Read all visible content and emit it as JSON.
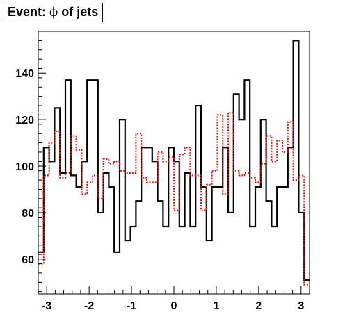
{
  "title": {
    "prefix": "Event: ",
    "symbol": "ϕ",
    "suffix": " of jets"
  },
  "chart_data": {
    "type": "line",
    "title": "Event: ϕ of jets",
    "xlabel": "",
    "ylabel": "",
    "xlim": [
      -3.2,
      3.2
    ],
    "ylim": [
      45,
      158
    ],
    "grid": false,
    "legend": "none",
    "x_ticks": [
      -3,
      -2,
      -1,
      0,
      1,
      2,
      3
    ],
    "x_tick_labels": [
      "-3",
      "-2",
      "-1",
      "0",
      "1",
      "2",
      "3"
    ],
    "y_ticks": [
      60,
      80,
      100,
      120,
      140
    ],
    "y_tick_labels": [
      "60",
      "80",
      "100",
      "120",
      "140"
    ],
    "bin_edges": [
      -3.2,
      -3.072,
      -2.944,
      -2.816,
      -2.688,
      -2.56,
      -2.432,
      -2.304,
      -2.176,
      -2.048,
      -1.92,
      -1.792,
      -1.664,
      -1.536,
      -1.408,
      -1.28,
      -1.152,
      -1.024,
      -0.896,
      -0.768,
      -0.64,
      -0.512,
      -0.384,
      -0.256,
      -0.128,
      0.0,
      0.128,
      0.256,
      0.384,
      0.512,
      0.64,
      0.768,
      0.896,
      1.024,
      1.152,
      1.28,
      1.408,
      1.536,
      1.664,
      1.792,
      1.92,
      2.048,
      2.176,
      2.304,
      2.432,
      2.56,
      2.688,
      2.816,
      2.944,
      3.072,
      3.2
    ],
    "series": [
      {
        "color": "#000000",
        "style": "solid",
        "values": [
          63,
          108,
          102,
          125,
          97,
          137,
          96,
          91,
          102,
          137,
          137,
          80,
          97,
          91,
          63,
          120,
          68,
          74,
          85,
          108,
          108,
          102,
          85,
          74,
          108,
          102,
          74,
          97,
          74,
          126,
          91,
          68,
          91,
          91,
          108,
          80,
          131,
          120,
          137,
          74,
          91,
          120,
          85,
          74,
          91,
          91,
          108,
          154,
          80,
          51
        ]
      },
      {
        "color": "#ff0000",
        "style": "dotted",
        "values": [
          58,
          96,
          110,
          115,
          95,
          97,
          113,
          107,
          88,
          93,
          96,
          86,
          103,
          101,
          102,
          98,
          97,
          97,
          114,
          95,
          93,
          93,
          106,
          102,
          104,
          81,
          105,
          108,
          96,
          96,
          81,
          92,
          98,
          122,
          88,
          123,
          98,
          96,
          97,
          95,
          93,
          101,
          113,
          102,
          111,
          106,
          119,
          94,
          96,
          49
        ]
      }
    ]
  }
}
